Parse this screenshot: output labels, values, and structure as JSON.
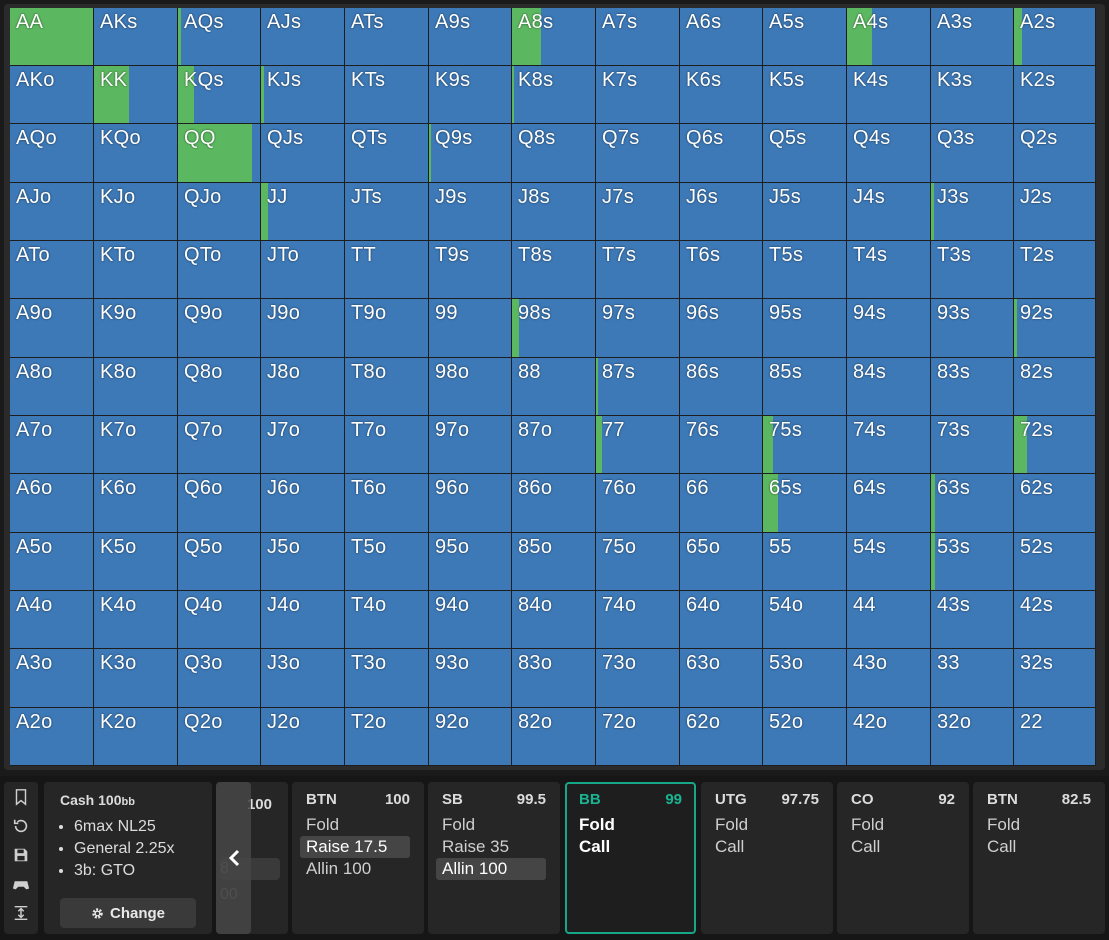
{
  "grid": {
    "rows": [
      [
        "AA",
        "AKs",
        "AQs",
        "AJs",
        "ATs",
        "A9s",
        "A8s",
        "A7s",
        "A6s",
        "A5s",
        "A4s",
        "A3s",
        "A2s"
      ],
      [
        "AKo",
        "KK",
        "KQs",
        "KJs",
        "KTs",
        "K9s",
        "K8s",
        "K7s",
        "K6s",
        "K5s",
        "K4s",
        "K3s",
        "K2s"
      ],
      [
        "AQo",
        "KQo",
        "QQ",
        "QJs",
        "QTs",
        "Q9s",
        "Q8s",
        "Q7s",
        "Q6s",
        "Q5s",
        "Q4s",
        "Q3s",
        "Q2s"
      ],
      [
        "AJo",
        "KJo",
        "QJo",
        "JJ",
        "JTs",
        "J9s",
        "J8s",
        "J7s",
        "J6s",
        "J5s",
        "J4s",
        "J3s",
        "J2s"
      ],
      [
        "ATo",
        "KTo",
        "QTo",
        "JTo",
        "TT",
        "T9s",
        "T8s",
        "T7s",
        "T6s",
        "T5s",
        "T4s",
        "T3s",
        "T2s"
      ],
      [
        "A9o",
        "K9o",
        "Q9o",
        "J9o",
        "T9o",
        "99",
        "98s",
        "97s",
        "96s",
        "95s",
        "94s",
        "93s",
        "92s"
      ],
      [
        "A8o",
        "K8o",
        "Q8o",
        "J8o",
        "T8o",
        "98o",
        "88",
        "87s",
        "86s",
        "85s",
        "84s",
        "83s",
        "82s"
      ],
      [
        "A7o",
        "K7o",
        "Q7o",
        "J7o",
        "T7o",
        "97o",
        "87o",
        "77",
        "76s",
        "75s",
        "74s",
        "73s",
        "72s"
      ],
      [
        "A6o",
        "K6o",
        "Q6o",
        "J6o",
        "T6o",
        "96o",
        "86o",
        "76o",
        "66",
        "65s",
        "64s",
        "63s",
        "62s"
      ],
      [
        "A5o",
        "K5o",
        "Q5o",
        "J5o",
        "T5o",
        "95o",
        "85o",
        "75o",
        "65o",
        "55",
        "54s",
        "53s",
        "52s"
      ],
      [
        "A4o",
        "K4o",
        "Q4o",
        "J4o",
        "T4o",
        "94o",
        "84o",
        "74o",
        "64o",
        "54o",
        "44",
        "43s",
        "42s"
      ],
      [
        "A3o",
        "K3o",
        "Q3o",
        "J3o",
        "T3o",
        "93o",
        "83o",
        "73o",
        "63o",
        "53o",
        "43o",
        "33",
        "32s"
      ],
      [
        "A2o",
        "K2o",
        "Q2o",
        "J2o",
        "T2o",
        "92o",
        "82o",
        "72o",
        "62o",
        "52o",
        "42o",
        "32o",
        "22"
      ]
    ],
    "call_frequency": {
      "AA": 1.0,
      "AQs": 0.04,
      "A8s": 0.35,
      "A4s": 0.3,
      "A2s": 0.1,
      "KK": 0.42,
      "KQs": 0.2,
      "KJs": 0.04,
      "K8s": 0.03,
      "QQ": 0.9,
      "Q9s": 0.02,
      "JJ": 0.08,
      "J3s": 0.04,
      "98s": 0.08,
      "87s": 0.03,
      "77": 0.07,
      "75s": 0.12,
      "72s": 0.16,
      "65s": 0.18,
      "63s": 0.05,
      "53s": 0.05,
      "92s": 0.04
    },
    "colors": {
      "fold": "#3d79b7",
      "call": "#5cb860"
    }
  },
  "toolbar": {
    "icons": [
      "bookmark-icon",
      "history-icon",
      "save-icon",
      "gamepad-icon",
      "expand-vertical-icon"
    ]
  },
  "info": {
    "game": "Cash",
    "stack": "100",
    "stack_unit": "bb",
    "lines": [
      "6max NL25",
      "General 2.25x",
      "3b: GTO"
    ],
    "change_label": "Change"
  },
  "prev_card": {
    "stack": "100",
    "ghost1": "8",
    "ghost2": "00"
  },
  "positions": [
    {
      "name": "BTN",
      "stack": "100",
      "actions": [
        "Fold",
        "Raise 17.5",
        "Allin 100"
      ],
      "selected": 1,
      "active": false
    },
    {
      "name": "SB",
      "stack": "99.5",
      "actions": [
        "Fold",
        "Raise 35",
        "Allin 100"
      ],
      "selected": 2,
      "active": false
    },
    {
      "name": "BB",
      "stack": "99",
      "actions": [
        "Fold",
        "Call"
      ],
      "selected": -1,
      "active": true
    },
    {
      "name": "UTG",
      "stack": "97.75",
      "actions": [
        "Fold",
        "Call"
      ],
      "selected": -1,
      "active": false
    },
    {
      "name": "CO",
      "stack": "92",
      "actions": [
        "Fold",
        "Call"
      ],
      "selected": -1,
      "active": false
    },
    {
      "name": "BTN",
      "stack": "82.5",
      "actions": [
        "Fold",
        "Call"
      ],
      "selected": -1,
      "active": false
    }
  ]
}
